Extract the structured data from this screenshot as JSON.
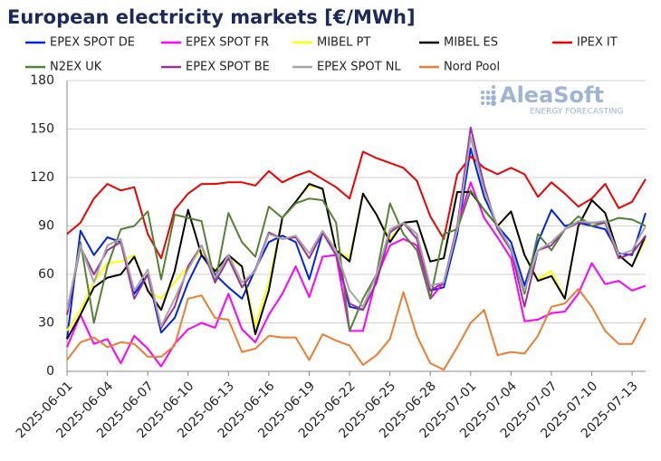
{
  "chart_data": {
    "type": "line",
    "title": "European electricity markets [€/MWh]",
    "watermark": {
      "name": "AleaSoft",
      "tagline": "ENERGY FORECASTING"
    },
    "categories": [
      "2025-06-01",
      null,
      null,
      "2025-06-04",
      null,
      null,
      "2025-06-07",
      null,
      null,
      "2025-06-10",
      null,
      null,
      "2025-06-13",
      null,
      null,
      "2025-06-16",
      null,
      null,
      "2025-06-19",
      null,
      null,
      "2025-06-22",
      null,
      null,
      "2025-06-25",
      null,
      null,
      "2025-06-28",
      null,
      null,
      "2025-07-01",
      null,
      null,
      "2025-07-04",
      null,
      null,
      "2025-07-07",
      null,
      null,
      "2025-07-10",
      null,
      null,
      "2025-07-13",
      null
    ],
    "ylim": [
      0,
      180
    ],
    "yticks": [
      0,
      30,
      60,
      90,
      120,
      150,
      180
    ],
    "grid": true,
    "series": [
      {
        "name": "EPEX SPOT DE",
        "color": "#0022ee",
        "values": [
          20,
          87,
          72,
          83,
          80,
          48,
          60,
          24,
          33,
          55,
          72,
          60,
          52,
          45,
          63,
          80,
          84,
          80,
          57,
          86,
          72,
          40,
          38,
          55,
          86,
          92,
          85,
          50,
          52,
          85,
          138,
          108,
          90,
          80,
          53,
          80,
          100,
          90,
          92,
          90,
          88,
          73,
          72,
          98
        ]
      },
      {
        "name": "EPEX SPOT FR",
        "color": "#ff00ff",
        "values": [
          15,
          35,
          17,
          20,
          5,
          22,
          14,
          3,
          17,
          26,
          30,
          27,
          48,
          26,
          18,
          35,
          48,
          65,
          46,
          71,
          72,
          25,
          25,
          58,
          78,
          82,
          78,
          45,
          55,
          90,
          117,
          95,
          83,
          70,
          31,
          32,
          36,
          37,
          48,
          67,
          54,
          56,
          50,
          53
        ]
      },
      {
        "name": "MIBEL PT",
        "color": "#ffff00",
        "values": [
          25,
          38,
          55,
          67,
          68,
          72,
          50,
          45,
          55,
          65,
          75,
          62,
          70,
          65,
          28,
          55,
          95,
          105,
          115,
          113,
          75,
          70,
          110,
          97,
          82,
          92,
          93,
          68,
          70,
          111,
          111,
          100,
          90,
          99,
          72,
          57,
          62,
          45,
          90,
          106,
          98,
          72,
          65,
          82
        ]
      },
      {
        "name": "MIBEL ES",
        "color": "#000000",
        "values": [
          20,
          35,
          52,
          58,
          60,
          71,
          50,
          38,
          62,
          100,
          72,
          62,
          72,
          65,
          23,
          50,
          95,
          105,
          116,
          113,
          75,
          68,
          110,
          97,
          80,
          92,
          93,
          68,
          70,
          111,
          111,
          100,
          90,
          99,
          72,
          56,
          59,
          45,
          90,
          106,
          98,
          72,
          65,
          84
        ]
      },
      {
        "name": "IPEX IT",
        "color": "#ee0000",
        "values": [
          85,
          92,
          107,
          116,
          112,
          114,
          85,
          70,
          100,
          110,
          116,
          116,
          117,
          117,
          115,
          124,
          117,
          121,
          124,
          119,
          114,
          107,
          136,
          132,
          129,
          126,
          118,
          96,
          82,
          122,
          133,
          126,
          122,
          126,
          122,
          108,
          117,
          110,
          102,
          107,
          116,
          101,
          105,
          119
        ]
      },
      {
        "name": "N2EX UK",
        "color": "#548235",
        "values": [
          35,
          80,
          30,
          65,
          88,
          90,
          99,
          57,
          97,
          95,
          93,
          55,
          98,
          80,
          71,
          102,
          95,
          104,
          107,
          106,
          92,
          25,
          45,
          60,
          104,
          85,
          75,
          45,
          85,
          88,
          112,
          100,
          90,
          76,
          48,
          85,
          75,
          88,
          96,
          90,
          92,
          95,
          94,
          90
        ]
      },
      {
        "name": "EPEX SPOT BE",
        "color": "#993399",
        "values": [
          35,
          77,
          60,
          75,
          80,
          45,
          60,
          27,
          40,
          65,
          78,
          55,
          70,
          52,
          63,
          86,
          82,
          83,
          70,
          86,
          72,
          42,
          38,
          55,
          86,
          92,
          82,
          50,
          55,
          90,
          151,
          115,
          88,
          75,
          40,
          75,
          78,
          88,
          92,
          92,
          92,
          70,
          73,
          84
        ]
      },
      {
        "name": "EPEX SPOT NL",
        "color": "#a6a6a6",
        "values": [
          38,
          78,
          55,
          78,
          82,
          50,
          63,
          28,
          45,
          63,
          78,
          58,
          72,
          55,
          62,
          85,
          82,
          84,
          73,
          87,
          75,
          50,
          40,
          60,
          88,
          92,
          85,
          53,
          55,
          88,
          145,
          112,
          90,
          76,
          50,
          75,
          80,
          88,
          93,
          92,
          93,
          72,
          75,
          90
        ]
      },
      {
        "name": "Nord Pool",
        "color": "#ed7d31",
        "values": [
          7,
          18,
          21,
          15,
          18,
          17,
          9,
          9,
          16,
          45,
          47,
          33,
          32,
          12,
          14,
          22,
          21,
          21,
          7,
          23,
          19,
          16,
          4,
          10,
          20,
          49,
          22,
          5,
          1,
          15,
          30,
          38,
          10,
          12,
          11,
          22,
          40,
          42,
          51,
          40,
          25,
          17,
          17,
          33
        ]
      }
    ]
  }
}
